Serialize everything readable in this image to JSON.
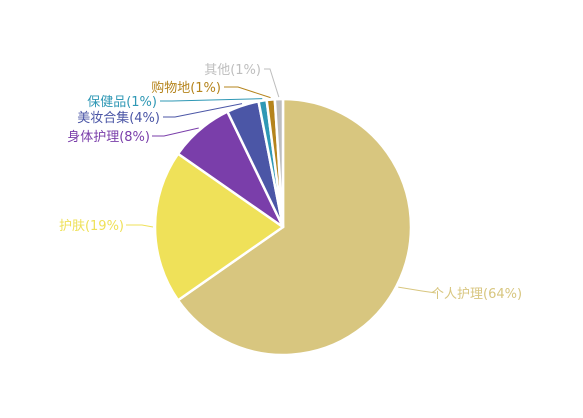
{
  "chart_data": {
    "type": "pie",
    "title": "",
    "slices": [
      {
        "label": "个人护理(64%)",
        "name": "个人护理",
        "value": 64,
        "color": "#D8C67F"
      },
      {
        "label": "护肤(19%)",
        "name": "护肤",
        "value": 19,
        "color": "#EFE159"
      },
      {
        "label": "身体护理(8%)",
        "name": "身体护理",
        "value": 8,
        "color": "#7A3EAA"
      },
      {
        "label": "美妆合集(4%)",
        "name": "美妆合集",
        "value": 4,
        "color": "#4B56A6"
      },
      {
        "label": "保健品(1%)",
        "name": "保健品",
        "value": 1,
        "color": "#2F98B5"
      },
      {
        "label": "购物地(1%)",
        "name": "购物地",
        "value": 1,
        "color": "#B5841C"
      },
      {
        "label": "其他(1%)",
        "name": "其他",
        "value": 1,
        "color": "#BEBEBE"
      }
    ]
  }
}
